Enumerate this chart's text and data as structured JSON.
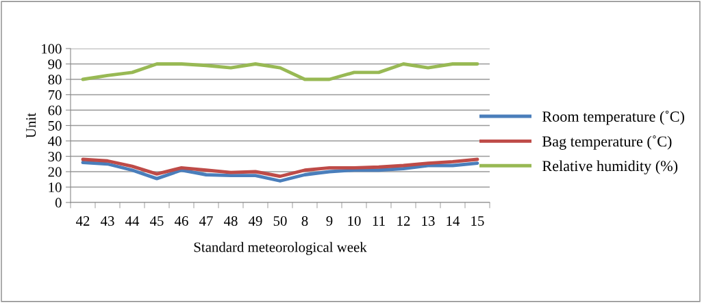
{
  "chart_data": {
    "type": "line",
    "xlabel": "Standard meteorological week",
    "ylabel": "Unit",
    "categories": [
      "42",
      "43",
      "44",
      "45",
      "46",
      "47",
      "48",
      "49",
      "50",
      "8",
      "9",
      "10",
      "11",
      "12",
      "13",
      "14",
      "15"
    ],
    "series": [
      {
        "name": "Room temperature (˚C)",
        "color": "#4a7ebb",
        "values": [
          26,
          25,
          21,
          15.5,
          21,
          18,
          17.5,
          17.5,
          14,
          18,
          20,
          21,
          21,
          22,
          24,
          24,
          25.5
        ]
      },
      {
        "name": "Bag temperature (˚C)",
        "color": "#be4b48",
        "values": [
          28,
          27,
          23.5,
          18.5,
          22.5,
          21,
          19.5,
          20,
          17,
          21,
          22.5,
          22.5,
          23,
          24,
          25.5,
          26.5,
          28
        ]
      },
      {
        "name": "Relative humidity (%)",
        "color": "#98b954",
        "values": [
          80,
          82.5,
          84.5,
          90,
          90,
          89,
          87.5,
          90,
          87.5,
          80,
          80,
          84.5,
          84.5,
          90,
          87.5,
          90,
          90
        ]
      }
    ],
    "ylim": [
      0,
      100
    ],
    "yticks": [
      0,
      10,
      20,
      30,
      40,
      50,
      60,
      70,
      80,
      90,
      100
    ],
    "grid": "y",
    "legend": "right",
    "marker": "none",
    "line_style": "solid"
  }
}
